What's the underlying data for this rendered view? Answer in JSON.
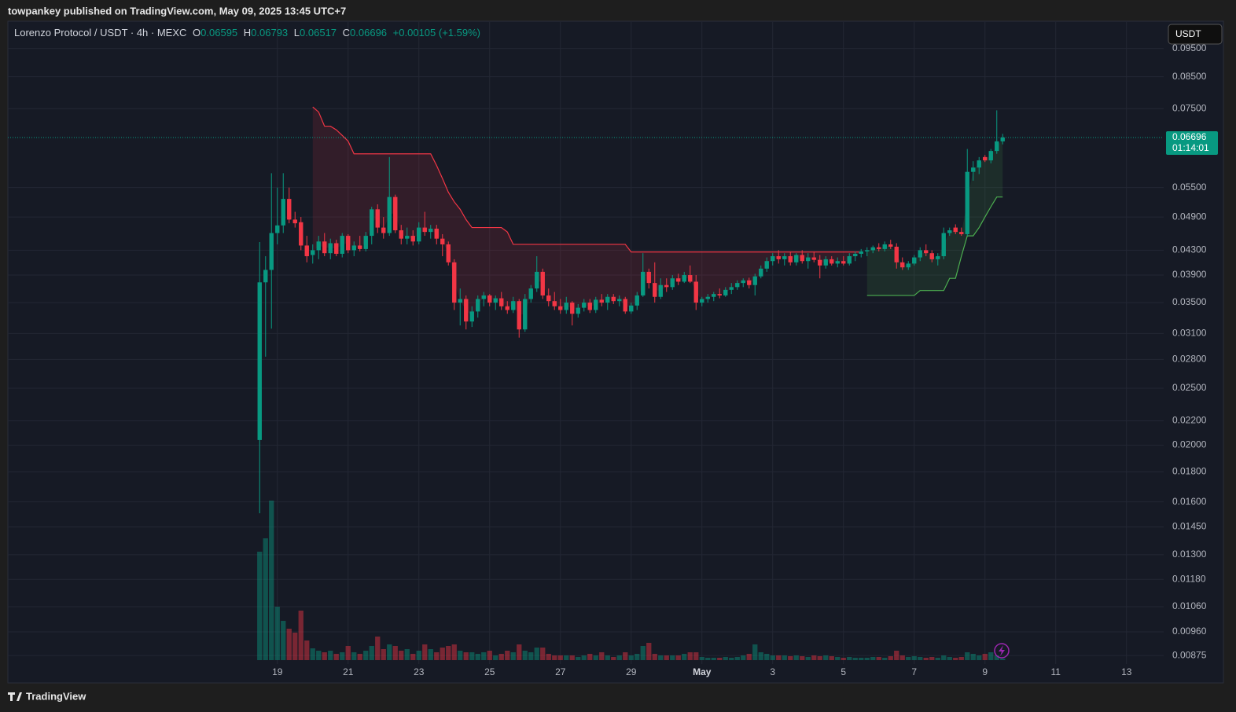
{
  "header": {
    "published": "towpankey published on TradingView.com, May 09, 2025 13:45 UTC+7"
  },
  "footer": {
    "brand": "TradingView"
  },
  "chart_data": {
    "type": "candlestick",
    "title": "Lorenzo Protocol / USDT · 4h · MEXC",
    "ohlc_labels": [
      "O",
      "H",
      "L",
      "C"
    ],
    "change": "+0.00105 (+1.59%)",
    "currency": "USDT",
    "countdown": "01:14:01",
    "log_scale": true,
    "grid": true,
    "up_color": "#089981",
    "down_color": "#f23645",
    "ylim": [
      0.00788,
      0.1054
    ],
    "yticks": [
      {
        "value": 0.095,
        "label": "0.09500"
      },
      {
        "value": 0.085,
        "label": "0.08500"
      },
      {
        "value": 0.075,
        "label": "0.07500"
      },
      {
        "value": 0.055,
        "label": "0.05500"
      },
      {
        "value": 0.049,
        "label": "0.04900"
      },
      {
        "value": 0.043,
        "label": "0.04300"
      },
      {
        "value": 0.039,
        "label": "0.03900"
      },
      {
        "value": 0.035,
        "label": "0.03500"
      },
      {
        "value": 0.031,
        "label": "0.03100"
      },
      {
        "value": 0.028,
        "label": "0.02800"
      },
      {
        "value": 0.025,
        "label": "0.02500"
      },
      {
        "value": 0.022,
        "label": "0.02200"
      },
      {
        "value": 0.02,
        "label": "0.02000"
      },
      {
        "value": 0.018,
        "label": "0.01800"
      },
      {
        "value": 0.016,
        "label": "0.01600"
      },
      {
        "value": 0.0145,
        "label": "0.01450"
      },
      {
        "value": 0.013,
        "label": "0.01300"
      },
      {
        "value": 0.0118,
        "label": "0.01180"
      },
      {
        "value": 0.0106,
        "label": "0.01060"
      },
      {
        "value": 0.0096,
        "label": "0.00960"
      },
      {
        "value": 0.00875,
        "label": "0.00875"
      }
    ],
    "xlim": [
      -42.7,
      153.3
    ],
    "xticks": [
      {
        "value": 3,
        "label": "19"
      },
      {
        "value": 15,
        "label": "21"
      },
      {
        "value": 27,
        "label": "23"
      },
      {
        "value": 39,
        "label": "25"
      },
      {
        "value": 51,
        "label": "27"
      },
      {
        "value": 63,
        "label": "29"
      },
      {
        "value": 75,
        "label": "May"
      },
      {
        "value": 87,
        "label": "3"
      },
      {
        "value": 99,
        "label": "5"
      },
      {
        "value": 111,
        "label": "7"
      },
      {
        "value": 123,
        "label": "9"
      },
      {
        "value": 135,
        "label": "11"
      },
      {
        "value": 147,
        "label": "13"
      }
    ],
    "open": [
      0.0204,
      0.0379,
      0.0398,
      0.046,
      0.0474,
      0.0526,
      0.0485,
      0.048,
      0.0438,
      0.0422,
      0.043,
      0.0445,
      0.0425,
      0.0442,
      0.0424,
      0.0455,
      0.043,
      0.0438,
      0.0432,
      0.0455,
      0.0505,
      0.047,
      0.046,
      0.053,
      0.0465,
      0.045,
      0.0455,
      0.0445,
      0.047,
      0.0462,
      0.0468,
      0.045,
      0.044,
      0.041,
      0.035,
      0.0355,
      0.0325,
      0.0338,
      0.0355,
      0.036,
      0.035,
      0.0356,
      0.0345,
      0.034,
      0.0352,
      0.0315,
      0.0355,
      0.037,
      0.0395,
      0.036,
      0.0352,
      0.0345,
      0.034,
      0.035,
      0.0335,
      0.0343,
      0.035,
      0.034,
      0.0354,
      0.035,
      0.0358,
      0.0352,
      0.0355,
      0.0338,
      0.0346,
      0.036,
      0.0395,
      0.0378,
      0.0358,
      0.0375,
      0.0372,
      0.0385,
      0.038,
      0.039,
      0.038,
      0.035,
      0.0355,
      0.0358,
      0.0362,
      0.036,
      0.0368,
      0.0372,
      0.0378,
      0.0382,
      0.0375,
      0.0388,
      0.04,
      0.0412,
      0.042,
      0.0415,
      0.042,
      0.041,
      0.0422,
      0.0412,
      0.0418,
      0.0414,
      0.0405,
      0.0415,
      0.0408,
      0.0412,
      0.0408,
      0.042,
      0.0424,
      0.0428,
      0.043,
      0.0435,
      0.0432,
      0.044,
      0.0436,
      0.041,
      0.0402,
      0.0408,
      0.0418,
      0.043,
      0.0425,
      0.0415,
      0.042,
      0.046,
      0.047,
      0.0462,
      0.0458,
      0.0585,
      0.0595,
      0.062,
      0.0612,
      0.0635,
      0.06595
    ],
    "high": [
      0.0444,
      0.042,
      0.0582,
      0.055,
      0.0582,
      0.055,
      0.05,
      0.049,
      0.0455,
      0.044,
      0.0455,
      0.046,
      0.045,
      0.0448,
      0.046,
      0.0458,
      0.0445,
      0.0455,
      0.0462,
      0.051,
      0.0515,
      0.049,
      0.062,
      0.0535,
      0.0475,
      0.047,
      0.0465,
      0.048,
      0.05,
      0.0475,
      0.0475,
      0.0458,
      0.0445,
      0.0415,
      0.037,
      0.036,
      0.0345,
      0.036,
      0.0365,
      0.0362,
      0.036,
      0.0365,
      0.0352,
      0.0358,
      0.0355,
      0.0362,
      0.0375,
      0.042,
      0.04,
      0.037,
      0.0365,
      0.0355,
      0.0358,
      0.0352,
      0.0348,
      0.0355,
      0.0355,
      0.0358,
      0.0362,
      0.0362,
      0.0362,
      0.036,
      0.0358,
      0.035,
      0.0365,
      0.0425,
      0.04,
      0.041,
      0.0385,
      0.0385,
      0.039,
      0.0392,
      0.0395,
      0.0405,
      0.039,
      0.0358,
      0.0362,
      0.0365,
      0.037,
      0.0372,
      0.0378,
      0.0382,
      0.0385,
      0.0386,
      0.0392,
      0.0405,
      0.0418,
      0.0425,
      0.043,
      0.0425,
      0.0428,
      0.0425,
      0.043,
      0.0425,
      0.0428,
      0.0422,
      0.042,
      0.042,
      0.0418,
      0.042,
      0.0425,
      0.0428,
      0.0432,
      0.0435,
      0.0438,
      0.0442,
      0.0445,
      0.0448,
      0.0442,
      0.0418,
      0.0412,
      0.0422,
      0.0435,
      0.044,
      0.043,
      0.0425,
      0.047,
      0.047,
      0.0476,
      0.047,
      0.064,
      0.061,
      0.062,
      0.0625,
      0.064,
      0.0745,
      0.06793
    ],
    "low": [
      0.0153,
      0.0283,
      0.0316,
      0.044,
      0.046,
      0.0478,
      0.047,
      0.043,
      0.041,
      0.0408,
      0.0415,
      0.042,
      0.0415,
      0.042,
      0.0418,
      0.0425,
      0.042,
      0.0428,
      0.0428,
      0.044,
      0.046,
      0.045,
      0.0455,
      0.046,
      0.044,
      0.044,
      0.0438,
      0.044,
      0.0455,
      0.045,
      0.044,
      0.042,
      0.0405,
      0.034,
      0.032,
      0.0315,
      0.0318,
      0.033,
      0.0345,
      0.0345,
      0.034,
      0.034,
      0.0335,
      0.0336,
      0.0305,
      0.0312,
      0.035,
      0.0365,
      0.0355,
      0.0345,
      0.034,
      0.0335,
      0.0335,
      0.032,
      0.033,
      0.0338,
      0.0336,
      0.0336,
      0.0345,
      0.034,
      0.0348,
      0.0345,
      0.0335,
      0.0335,
      0.034,
      0.0358,
      0.037,
      0.035,
      0.0355,
      0.0365,
      0.0368,
      0.0375,
      0.0378,
      0.0378,
      0.034,
      0.0345,
      0.035,
      0.0352,
      0.0356,
      0.0358,
      0.0362,
      0.0368,
      0.0372,
      0.037,
      0.036,
      0.0385,
      0.0395,
      0.0405,
      0.0408,
      0.0405,
      0.0405,
      0.0405,
      0.0408,
      0.04,
      0.041,
      0.0385,
      0.04,
      0.0405,
      0.0402,
      0.0405,
      0.0405,
      0.0412,
      0.0418,
      0.042,
      0.0425,
      0.0428,
      0.0428,
      0.0432,
      0.04,
      0.0398,
      0.0398,
      0.0405,
      0.0412,
      0.042,
      0.041,
      0.0405,
      0.0415,
      0.0455,
      0.0458,
      0.0455,
      0.0455,
      0.0565,
      0.058,
      0.0608,
      0.0605,
      0.0628,
      0.06517
    ],
    "close": [
      0.0379,
      0.0398,
      0.046,
      0.0474,
      0.0526,
      0.0485,
      0.0478,
      0.0438,
      0.042,
      0.043,
      0.0445,
      0.0425,
      0.0442,
      0.0424,
      0.0455,
      0.043,
      0.0438,
      0.0432,
      0.0455,
      0.0505,
      0.047,
      0.046,
      0.053,
      0.0465,
      0.045,
      0.0455,
      0.0445,
      0.047,
      0.0462,
      0.0468,
      0.045,
      0.044,
      0.041,
      0.035,
      0.0355,
      0.0325,
      0.0338,
      0.0355,
      0.036,
      0.035,
      0.0356,
      0.0345,
      0.034,
      0.0352,
      0.0315,
      0.0355,
      0.037,
      0.0395,
      0.036,
      0.0352,
      0.0345,
      0.034,
      0.035,
      0.0335,
      0.0343,
      0.035,
      0.034,
      0.0354,
      0.035,
      0.0358,
      0.0352,
      0.0355,
      0.0338,
      0.0346,
      0.036,
      0.0395,
      0.0378,
      0.0358,
      0.0375,
      0.0372,
      0.0385,
      0.038,
      0.039,
      0.038,
      0.035,
      0.0355,
      0.0358,
      0.0362,
      0.036,
      0.0368,
      0.0372,
      0.0378,
      0.0382,
      0.0375,
      0.0388,
      0.04,
      0.0412,
      0.042,
      0.0415,
      0.042,
      0.041,
      0.0422,
      0.0412,
      0.0418,
      0.0414,
      0.0405,
      0.0415,
      0.0408,
      0.0412,
      0.0408,
      0.042,
      0.0424,
      0.0428,
      0.043,
      0.0435,
      0.0432,
      0.044,
      0.0436,
      0.041,
      0.0402,
      0.0408,
      0.0418,
      0.043,
      0.0425,
      0.0415,
      0.042,
      0.046,
      0.0465,
      0.0462,
      0.0458,
      0.0585,
      0.0595,
      0.0612,
      0.0612,
      0.0635,
      0.06595,
      0.06696
    ],
    "volume": [
      138,
      155,
      203,
      68,
      50,
      40,
      35,
      63,
      25,
      15,
      12,
      10,
      12,
      8,
      10,
      18,
      10,
      8,
      12,
      18,
      30,
      14,
      20,
      18,
      12,
      14,
      8,
      12,
      20,
      14,
      10,
      16,
      18,
      20,
      12,
      10,
      10,
      8,
      10,
      12,
      6,
      8,
      12,
      10,
      20,
      12,
      10,
      16,
      16,
      8,
      6,
      6,
      6,
      6,
      4,
      6,
      8,
      6,
      10,
      6,
      4,
      6,
      10,
      6,
      8,
      18,
      22,
      8,
      6,
      6,
      6,
      6,
      8,
      10,
      10,
      4,
      3,
      3,
      3,
      4,
      3,
      4,
      6,
      8,
      20,
      10,
      8,
      6,
      6,
      6,
      5,
      6,
      5,
      4,
      6,
      5,
      6,
      5,
      4,
      3,
      4,
      3,
      3,
      3,
      4,
      4,
      3,
      5,
      12,
      6,
      4,
      5,
      4,
      3,
      4,
      3,
      6,
      4,
      3,
      4,
      10,
      8,
      6,
      8,
      10,
      6,
      2
    ],
    "volume_ylim": [
      0,
      300
    ],
    "supertrend_down": {
      "color": "#f23645",
      "values": [
        null,
        null,
        null,
        null,
        null,
        null,
        null,
        null,
        null,
        0.0755,
        0.074,
        0.07,
        0.07,
        0.069,
        0.0675,
        0.066,
        0.0628,
        0.0628,
        0.0628,
        0.0628,
        0.0628,
        0.0628,
        0.0628,
        0.0628,
        0.0628,
        0.0628,
        0.0628,
        0.0628,
        0.0628,
        0.0628,
        0.06,
        0.057,
        0.054,
        0.052,
        0.0505,
        0.0485,
        0.047,
        0.047,
        0.047,
        0.047,
        0.047,
        0.047,
        0.0462,
        0.044,
        0.044,
        0.044,
        0.044,
        0.044,
        0.044,
        0.044,
        0.044,
        0.044,
        0.044,
        0.044,
        0.044,
        0.044,
        0.044,
        0.044,
        0.044,
        0.044,
        0.044,
        0.044,
        0.044,
        0.0427,
        0.0427,
        0.0427,
        0.0427,
        0.0427,
        0.0427,
        0.0427,
        0.0427,
        0.0427,
        0.0427,
        0.0427,
        0.0427,
        0.0427,
        0.0427,
        0.0427,
        0.0427,
        0.0427,
        0.0427,
        0.0427,
        0.0427,
        0.0427,
        0.0427,
        0.0427,
        0.0427,
        0.0427,
        0.0427,
        0.0427,
        0.0427,
        0.0427,
        0.0427,
        0.0427,
        0.0427,
        0.0427,
        0.0427,
        0.0427,
        0.0427,
        0.0427,
        0.0427,
        0.0427,
        0.0427,
        null,
        null,
        null,
        null,
        null,
        null,
        null,
        null,
        null,
        null,
        null,
        null,
        null,
        null,
        null,
        null,
        null,
        null,
        null,
        null,
        null,
        null,
        null,
        null
      ]
    },
    "supertrend_up": {
      "color": "#4caf50",
      "values": [
        null,
        null,
        null,
        null,
        null,
        null,
        null,
        null,
        null,
        null,
        null,
        null,
        null,
        null,
        null,
        null,
        null,
        null,
        null,
        null,
        null,
        null,
        null,
        null,
        null,
        null,
        null,
        null,
        null,
        null,
        null,
        null,
        null,
        null,
        null,
        null,
        null,
        null,
        null,
        null,
        null,
        null,
        null,
        null,
        null,
        null,
        null,
        null,
        null,
        null,
        null,
        null,
        null,
        null,
        null,
        null,
        null,
        null,
        null,
        null,
        null,
        null,
        null,
        null,
        null,
        null,
        null,
        null,
        null,
        null,
        null,
        null,
        null,
        null,
        null,
        null,
        null,
        null,
        null,
        null,
        null,
        null,
        null,
        null,
        null,
        null,
        null,
        null,
        null,
        null,
        null,
        null,
        null,
        null,
        null,
        null,
        null,
        null,
        null,
        null,
        null,
        null,
        null,
        0.036,
        0.036,
        0.036,
        0.036,
        0.036,
        0.036,
        0.036,
        0.036,
        0.036,
        0.0367,
        0.0367,
        0.0367,
        0.0367,
        0.0367,
        0.0385,
        0.0385,
        0.042,
        0.0455,
        0.0455,
        0.047,
        0.049,
        0.051,
        0.053,
        0.053
      ]
    }
  }
}
